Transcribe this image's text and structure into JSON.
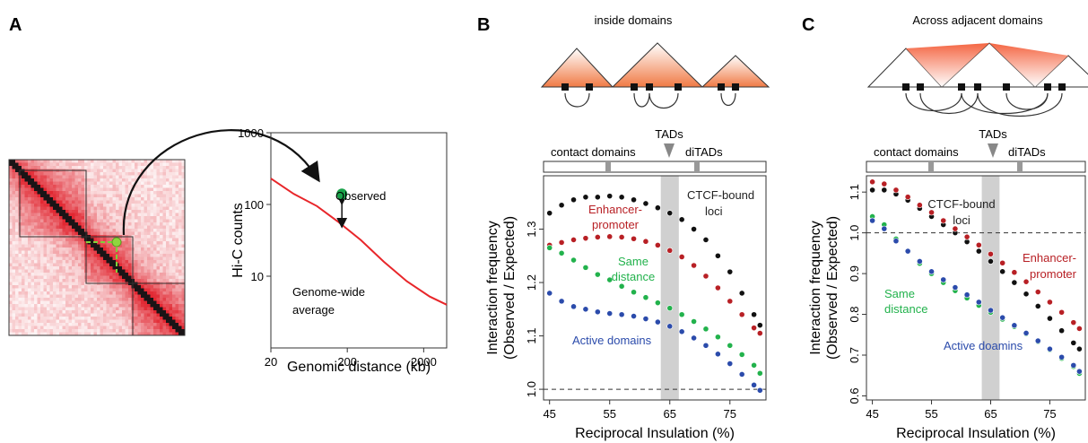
{
  "panels": {
    "A": {
      "letter": "A",
      "heatmap_legend_none": "",
      "observed_label": "Observed",
      "average_label_line1": "Genome-wide",
      "average_label_line2": "average",
      "chart_data": {
        "type": "line",
        "xlabel": "Genomic distance (kb)",
        "ylabel": "Hi-C counts",
        "x_scale": "log",
        "y_scale": "log",
        "xlim": [
          20,
          4000
        ],
        "ylim": [
          1,
          1000
        ],
        "xticks": [
          "20",
          "200",
          "2000"
        ],
        "yticks": [
          "1000",
          "100",
          "10"
        ],
        "grid": false,
        "series": [
          {
            "color": "#e8262a",
            "x": [
              20,
              40,
              80,
              150,
              300,
              600,
              1200,
              2400,
              4000
            ],
            "y": [
              230,
              140,
              95,
              58,
              32,
              16,
              8.5,
              5.2,
              4.0
            ]
          }
        ],
        "observed_point": {
          "x": 170,
          "y": 140,
          "color": "#1aa24a"
        },
        "arrow_from": {
          "x": 170,
          "y": 115
        },
        "arrow_to": {
          "x": 170,
          "y": 55
        }
      }
    },
    "B": {
      "letter": "B",
      "top_title": "inside domains",
      "scale_labels": {
        "contact_domains": "contact domains",
        "tads": "TADs",
        "ditads": "diTADs"
      },
      "annotations": {
        "ctcf_line1": "CTCF-bound",
        "ctcf_line2": "loci",
        "ep_line1": "Enhancer-",
        "ep_line2": "promoter",
        "same_line1": "Same",
        "same_line2": "distance",
        "active": "Active domains"
      },
      "chart_data": {
        "type": "scatter",
        "xlabel": "Reciprocal Insulation (%)",
        "ylabel_line1": "Interaction frequency",
        "ylabel_line2": "(Observed / Expected)",
        "xlim": [
          44,
          81
        ],
        "ylim": [
          0.98,
          1.4
        ],
        "xticks": [
          45,
          55,
          65,
          75
        ],
        "yticks": [
          1.0,
          1.1,
          1.2,
          1.3
        ],
        "reference_line": 1.0,
        "shaded_band": [
          63.5,
          66.5
        ],
        "series": [
          {
            "name": "CTCF-bound loci",
            "color": "#111111",
            "x": [
              45,
              47,
              49,
              51,
              53,
              55,
              57,
              59,
              61,
              63,
              65,
              67,
              69,
              71,
              73,
              75,
              77,
              79,
              80
            ],
            "y": [
              1.33,
              1.345,
              1.355,
              1.36,
              1.36,
              1.362,
              1.36,
              1.355,
              1.348,
              1.34,
              1.33,
              1.318,
              1.3,
              1.28,
              1.25,
              1.22,
              1.18,
              1.14,
              1.12
            ]
          },
          {
            "name": "Enhancer-promoter",
            "color": "#b82025",
            "x": [
              45,
              47,
              49,
              51,
              53,
              55,
              57,
              59,
              61,
              63,
              65,
              67,
              69,
              71,
              73,
              75,
              77,
              79,
              80
            ],
            "y": [
              1.27,
              1.275,
              1.28,
              1.283,
              1.285,
              1.286,
              1.285,
              1.282,
              1.277,
              1.27,
              1.26,
              1.248,
              1.232,
              1.212,
              1.19,
              1.165,
              1.14,
              1.115,
              1.105
            ]
          },
          {
            "name": "Same distance",
            "color": "#22b24c",
            "x": [
              45,
              47,
              49,
              51,
              53,
              55,
              57,
              59,
              61,
              63,
              65,
              67,
              69,
              71,
              73,
              75,
              77,
              79,
              80
            ],
            "y": [
              1.265,
              1.255,
              1.242,
              1.228,
              1.215,
              1.205,
              1.193,
              1.182,
              1.172,
              1.162,
              1.152,
              1.14,
              1.127,
              1.113,
              1.098,
              1.082,
              1.065,
              1.045,
              1.03
            ]
          },
          {
            "name": "Active domains",
            "color": "#2b4bab",
            "x": [
              45,
              47,
              49,
              51,
              53,
              55,
              57,
              59,
              61,
              63,
              65,
              67,
              69,
              71,
              73,
              75,
              77,
              79,
              80
            ],
            "y": [
              1.18,
              1.165,
              1.155,
              1.15,
              1.145,
              1.142,
              1.14,
              1.137,
              1.132,
              1.126,
              1.118,
              1.108,
              1.096,
              1.082,
              1.066,
              1.048,
              1.028,
              1.008,
              0.998
            ]
          }
        ]
      }
    },
    "C": {
      "letter": "C",
      "top_title": "Across adjacent domains",
      "scale_labels": {
        "contact_domains": "contact domains",
        "tads": "TADs",
        "ditads": "diTADs"
      },
      "annotations": {
        "ctcf_line1": "CTCF-bound",
        "ctcf_line2": "loci",
        "ep_line1": "Enhancer-",
        "ep_line2": "promoter",
        "same_line1": "Same",
        "same_line2": "distance",
        "active": "Active doamins"
      },
      "chart_data": {
        "type": "scatter",
        "xlabel": "Reciprocal Insulation (%)",
        "ylabel_line1": "Interaction frequency",
        "ylabel_line2": "(Observed / Expected)",
        "xlim": [
          44,
          81
        ],
        "ylim": [
          0.59,
          1.14
        ],
        "xticks": [
          45,
          55,
          65,
          75
        ],
        "yticks": [
          0.6,
          0.7,
          0.8,
          0.9,
          1.0,
          1.1
        ],
        "reference_line": 1.0,
        "shaded_band": [
          63.5,
          66.5
        ],
        "series": [
          {
            "name": "CTCF-bound loci",
            "color": "#111111",
            "x": [
              45,
              47,
              49,
              51,
              53,
              55,
              57,
              59,
              61,
              63,
              65,
              67,
              69,
              71,
              73,
              75,
              77,
              79,
              80
            ],
            "y": [
              1.105,
              1.105,
              1.095,
              1.08,
              1.06,
              1.04,
              1.02,
              1.0,
              0.978,
              0.955,
              0.93,
              0.905,
              0.878,
              0.85,
              0.82,
              0.79,
              0.76,
              0.73,
              0.715
            ]
          },
          {
            "name": "Enhancer-promoter",
            "color": "#b82025",
            "x": [
              45,
              47,
              49,
              51,
              53,
              55,
              57,
              59,
              61,
              63,
              65,
              67,
              69,
              71,
              73,
              75,
              77,
              79,
              80
            ],
            "y": [
              1.125,
              1.12,
              1.105,
              1.088,
              1.068,
              1.05,
              1.03,
              1.01,
              0.99,
              0.97,
              0.948,
              0.926,
              0.903,
              0.88,
              0.855,
              0.83,
              0.805,
              0.78,
              0.765
            ]
          },
          {
            "name": "Same distance",
            "color": "#22b24c",
            "x": [
              45,
              47,
              49,
              51,
              53,
              55,
              57,
              59,
              61,
              63,
              65,
              67,
              69,
              71,
              73,
              75,
              77,
              79,
              80
            ],
            "y": [
              1.04,
              1.02,
              0.985,
              0.955,
              0.925,
              0.9,
              0.878,
              0.858,
              0.84,
              0.822,
              0.805,
              0.788,
              0.77,
              0.752,
              0.733,
              0.713,
              0.692,
              0.672,
              0.655
            ]
          },
          {
            "name": "Active domains",
            "color": "#2b4bab",
            "x": [
              45,
              47,
              49,
              51,
              53,
              55,
              57,
              59,
              61,
              63,
              65,
              67,
              69,
              71,
              73,
              75,
              77,
              79,
              80
            ],
            "y": [
              1.03,
              1.01,
              0.98,
              0.955,
              0.93,
              0.905,
              0.885,
              0.866,
              0.848,
              0.83,
              0.81,
              0.792,
              0.773,
              0.754,
              0.735,
              0.715,
              0.695,
              0.675,
              0.66
            ]
          }
        ]
      }
    }
  },
  "colors": {
    "heat": "#d9232b",
    "tad_fill_top": "#ffffff",
    "tad_fill_bottom": "#f07a45",
    "band": "#d0d0d0"
  }
}
